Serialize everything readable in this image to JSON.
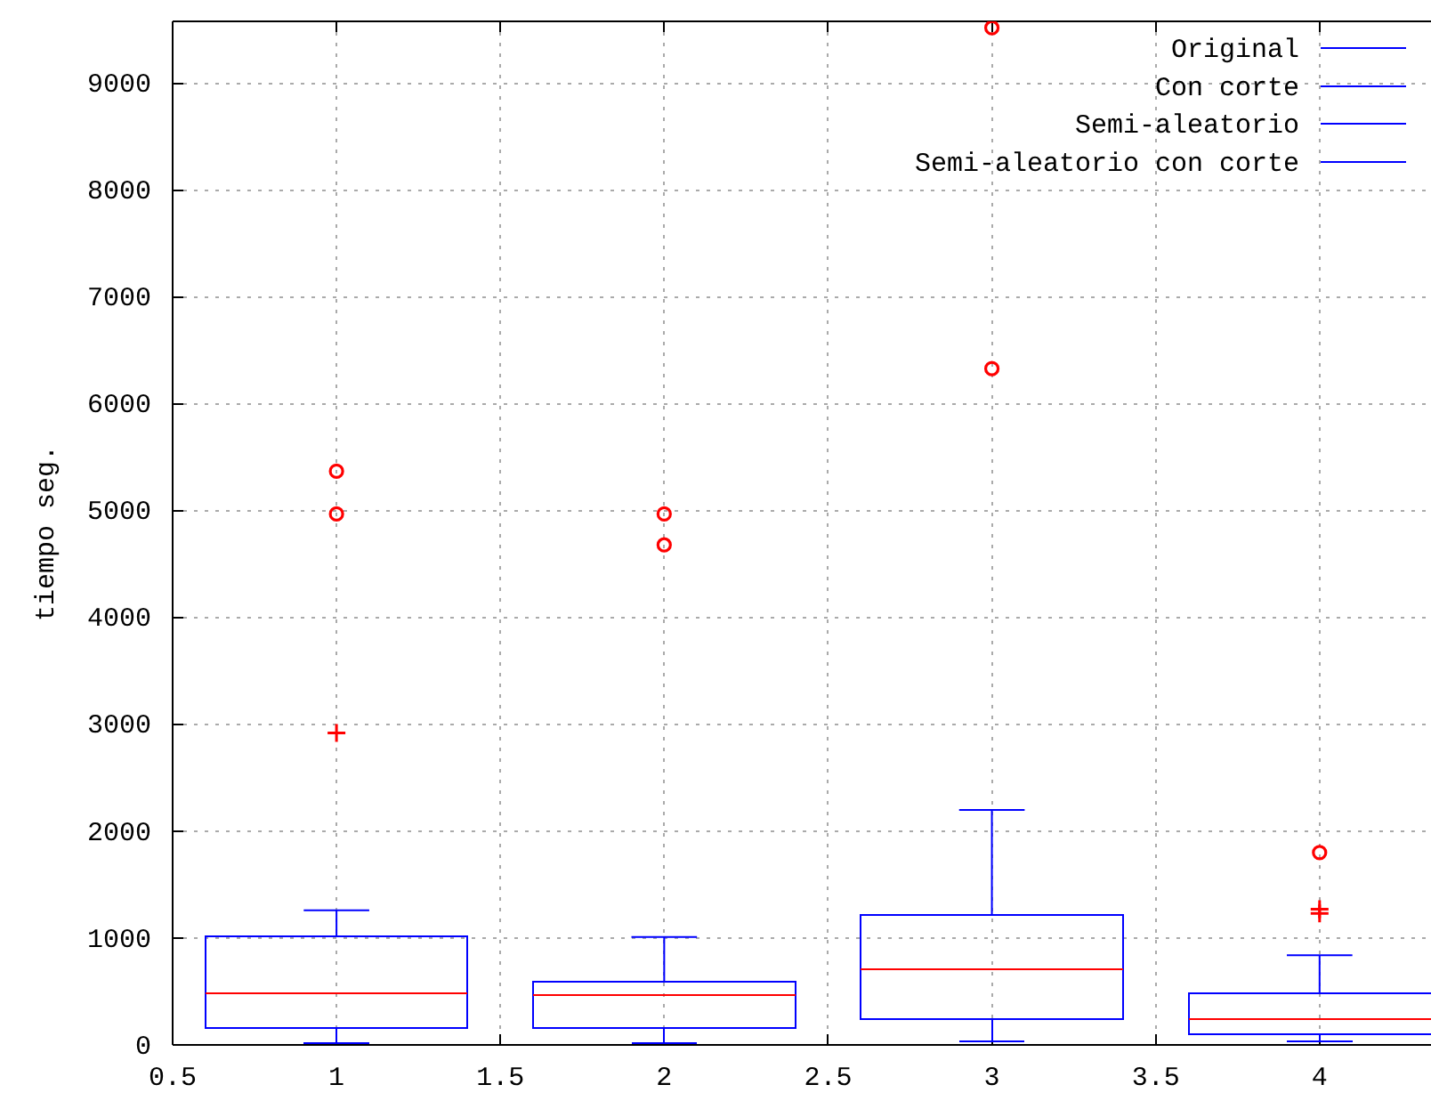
{
  "chart_data": {
    "type": "box",
    "ylabel": "tiempo seg.",
    "xlim": [
      0.5,
      4.34
    ],
    "xticks": [
      0.5,
      1,
      1.5,
      2,
      2.5,
      3,
      3.5,
      4
    ],
    "ylim": [
      0,
      9580
    ],
    "yticks": [
      0,
      1000,
      2000,
      3000,
      4000,
      5000,
      6000,
      7000,
      8000,
      9000
    ],
    "grid": true,
    "legend": "top right",
    "series": [
      {
        "name": "Original",
        "color": "#0000ff",
        "x": [
          1
        ],
        "boxes": [
          {
            "low": 15,
            "q1": 155,
            "median": 480,
            "q3": 1020,
            "high": 1260,
            "outliers": [
              5370,
              4970
            ]
          }
        ]
      },
      {
        "name": "Con corte",
        "color": "#0000ff",
        "x": [
          2
        ],
        "boxes": [
          {
            "low": 15,
            "q1": 155,
            "median": 465,
            "q3": 590,
            "high": 1010,
            "outliers": [
              4970,
              4680
            ]
          }
        ]
      },
      {
        "name": "Semi-aleatorio",
        "color": "#0000ff",
        "x": [
          3
        ],
        "boxes": [
          {
            "low": 35,
            "q1": 240,
            "median": 710,
            "q3": 1220,
            "high": 2200,
            "outliers": [
              9520,
              6330
            ]
          }
        ]
      },
      {
        "name": "Semi-aleatorio con corte",
        "color": "#0000ff",
        "x": [
          4
        ],
        "boxes": [
          {
            "low": 35,
            "q1": 100,
            "median": 240,
            "q3": 480,
            "high": 840,
            "outliers": [
              1800
            ]
          }
        ]
      },
      {
        "type": "scatter",
        "color": "#ff0000",
        "marker": "cross",
        "x": [
          1,
          4,
          4
        ],
        "values": [
          2920,
          1230,
          1270
        ]
      }
    ]
  }
}
